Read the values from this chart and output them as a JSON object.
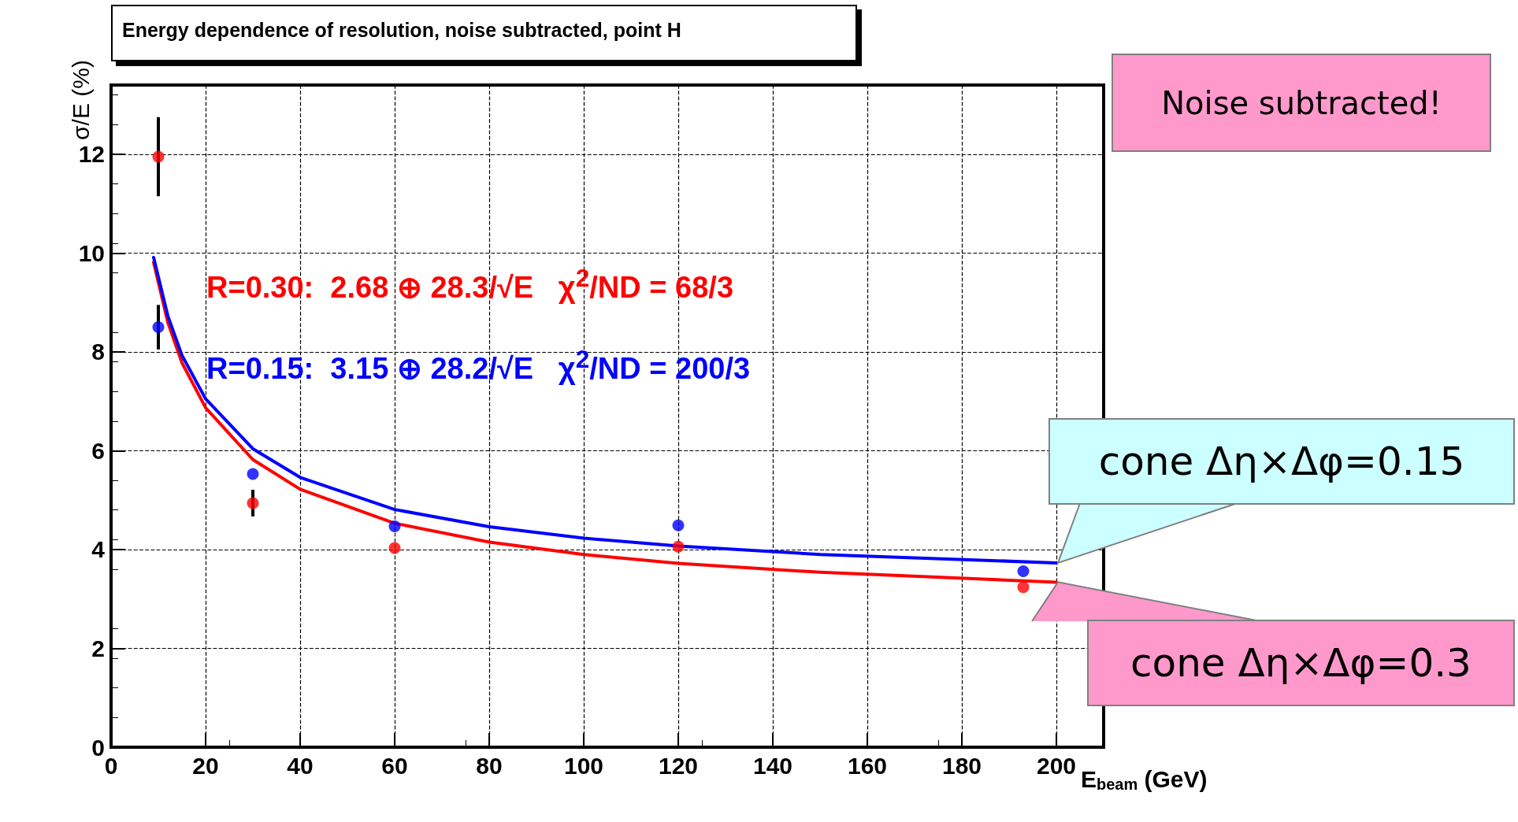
{
  "chart_data": {
    "type": "scatter",
    "title": "Energy dependence of resolution, noise subtracted, point H",
    "xlabel": "E$_{beam}$ (GeV)",
    "ylabel": "σ/E (%)",
    "xlim": [
      0,
      210
    ],
    "xticks": [
      0,
      20,
      40,
      60,
      80,
      100,
      120,
      140,
      160,
      180,
      200
    ],
    "ylim": [
      0,
      13.4
    ],
    "yticks": [
      0,
      2,
      4,
      6,
      8,
      10,
      12
    ],
    "grid": true,
    "marker": "circle",
    "series": [
      {
        "color": "#ff0000",
        "x": [
          10,
          30,
          60,
          120,
          193
        ],
        "values": [
          11.95,
          4.94,
          4.03,
          4.06,
          3.24
        ],
        "errors": [
          0.8,
          0.27,
          null,
          null,
          null
        ]
      },
      {
        "color": "#0000ff",
        "x": [
          10,
          30,
          60,
          120,
          193
        ],
        "values": [
          8.5,
          5.53,
          4.47,
          4.49,
          3.56
        ],
        "errors": [
          0.45,
          null,
          null,
          null,
          null
        ]
      },
      {
        "type": "line",
        "marker": "none",
        "color": "#ff0000",
        "x": [
          9,
          12,
          15,
          20,
          30,
          40,
          60,
          80,
          100,
          120,
          150,
          200
        ],
        "values": [
          9.81,
          8.6,
          7.78,
          6.87,
          5.82,
          5.22,
          4.53,
          4.15,
          3.9,
          3.72,
          3.54,
          3.34
        ]
      },
      {
        "type": "line",
        "marker": "none",
        "color": "#0000ff",
        "x": [
          9,
          12,
          15,
          20,
          30,
          40,
          60,
          80,
          100,
          120,
          150,
          200
        ],
        "values": [
          9.91,
          8.73,
          7.93,
          7.05,
          6.04,
          5.46,
          4.81,
          4.46,
          4.23,
          4.07,
          3.9,
          3.73
        ]
      }
    ],
    "annotations": [
      "R=0.30:  2.68 ⊕ 28.3/√E   χ$^{2}$/ND = 68/3",
      "R=0.15:  3.15 ⊕ 28.2/√E   χ$^{2}$/ND = 200/3",
      "Noise subtracted!",
      {
        "text": "cone Δη×Δφ=0.15",
        "x": 200,
        "y": 3.73
      },
      {
        "text": "cone Δη×Δφ=0.3",
        "x": 200,
        "y": 3.34
      }
    ]
  }
}
